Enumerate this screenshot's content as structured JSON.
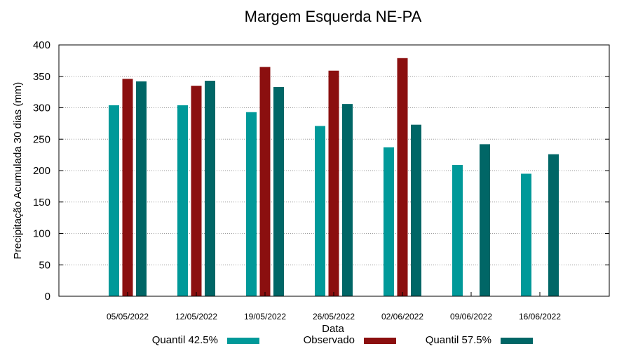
{
  "chart_data": {
    "type": "bar",
    "title": "Margem Esquerda NE-PA",
    "xlabel": "Data",
    "ylabel": "Precipitação Acumulada 30 dias (mm)",
    "ylim": [
      0,
      400
    ],
    "yticks": [
      0,
      50,
      100,
      150,
      200,
      250,
      300,
      350,
      400
    ],
    "grid": true,
    "legend_position": "bottom",
    "categories": [
      "05/05/2022",
      "12/05/2022",
      "19/05/2022",
      "26/05/2022",
      "02/06/2022",
      "09/06/2022",
      "16/06/2022"
    ],
    "series": [
      {
        "name": "Quantil 42.5%",
        "color": "#009999",
        "values": [
          304,
          304,
          293,
          271,
          237,
          209,
          195
        ]
      },
      {
        "name": "Observado",
        "color": "#8b0f0f",
        "values": [
          346,
          335,
          365,
          359,
          379,
          null,
          null
        ]
      },
      {
        "name": "Quantil 57.5%",
        "color": "#006666",
        "values": [
          342,
          343,
          333,
          306,
          273,
          242,
          226
        ]
      }
    ]
  }
}
